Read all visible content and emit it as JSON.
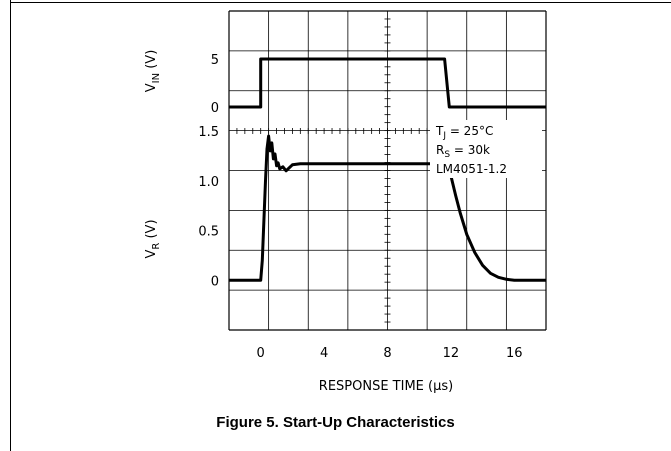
{
  "figure": {
    "caption": "Figure 5. Start-Up Characteristics"
  },
  "chart_data": {
    "type": "line",
    "xlabel": "RESPONSE TIME (µs)",
    "x_range": [
      -2,
      18
    ],
    "x_ticks": [
      0,
      4,
      8,
      12,
      16
    ],
    "x_tick_labels": [
      "0",
      "4",
      "8",
      "12",
      "16"
    ],
    "grid": true,
    "panels": [
      {
        "ylabel": "V_IN (V)",
        "ylabel_main": "V",
        "ylabel_sub": "IN",
        "ylabel_unit": " (V)",
        "y_range": [
          -2.5,
          10
        ],
        "y_ticks": [
          0,
          5
        ],
        "y_tick_labels": [
          "0",
          "5"
        ],
        "series": [
          {
            "x": [
              -2,
              0,
              0,
              11.6,
              11.9,
              18
            ],
            "y": [
              0,
              0,
              5,
              5,
              0,
              0
            ]
          }
        ]
      },
      {
        "ylabel": "V_R (V)",
        "ylabel_main": "V",
        "ylabel_sub": "R",
        "ylabel_unit": " (V)",
        "y_range": [
          -0.5,
          1.5
        ],
        "y_ticks": [
          0,
          0.5,
          1.0,
          1.5
        ],
        "y_tick_labels": [
          "0",
          "0.5",
          "1.0",
          "1.5"
        ],
        "series": [
          {
            "x": [
              -2,
              0,
              0.1,
              0.3,
              0.4,
              0.5,
              0.6,
              0.7,
              0.8,
              0.9,
              1.0,
              1.1,
              1.2,
              1.4,
              1.6,
              1.8,
              2.0,
              2.5,
              3,
              4,
              6,
              8,
              10,
              11.0,
              11.5,
              11.8,
              12.0,
              12.3,
              12.6,
              13.0,
              13.5,
              14.0,
              14.5,
              15.0,
              15.5,
              16.0,
              18
            ],
            "y": [
              0,
              0,
              0.2,
              1.0,
              1.32,
              1.45,
              1.3,
              1.38,
              1.22,
              1.27,
              1.15,
              1.18,
              1.12,
              1.14,
              1.1,
              1.13,
              1.16,
              1.17,
              1.17,
              1.17,
              1.17,
              1.17,
              1.17,
              1.17,
              1.17,
              1.16,
              1.05,
              0.85,
              0.67,
              0.46,
              0.28,
              0.15,
              0.07,
              0.03,
              0.01,
              0,
              0
            ]
          }
        ]
      }
    ],
    "annotations": [
      {
        "main": "T",
        "sub": "J",
        "rest": " = 25°C"
      },
      {
        "main": "R",
        "sub": "S",
        "rest": " = 30k"
      },
      {
        "main": "LM4051-1.2",
        "sub": "",
        "rest": ""
      }
    ]
  }
}
